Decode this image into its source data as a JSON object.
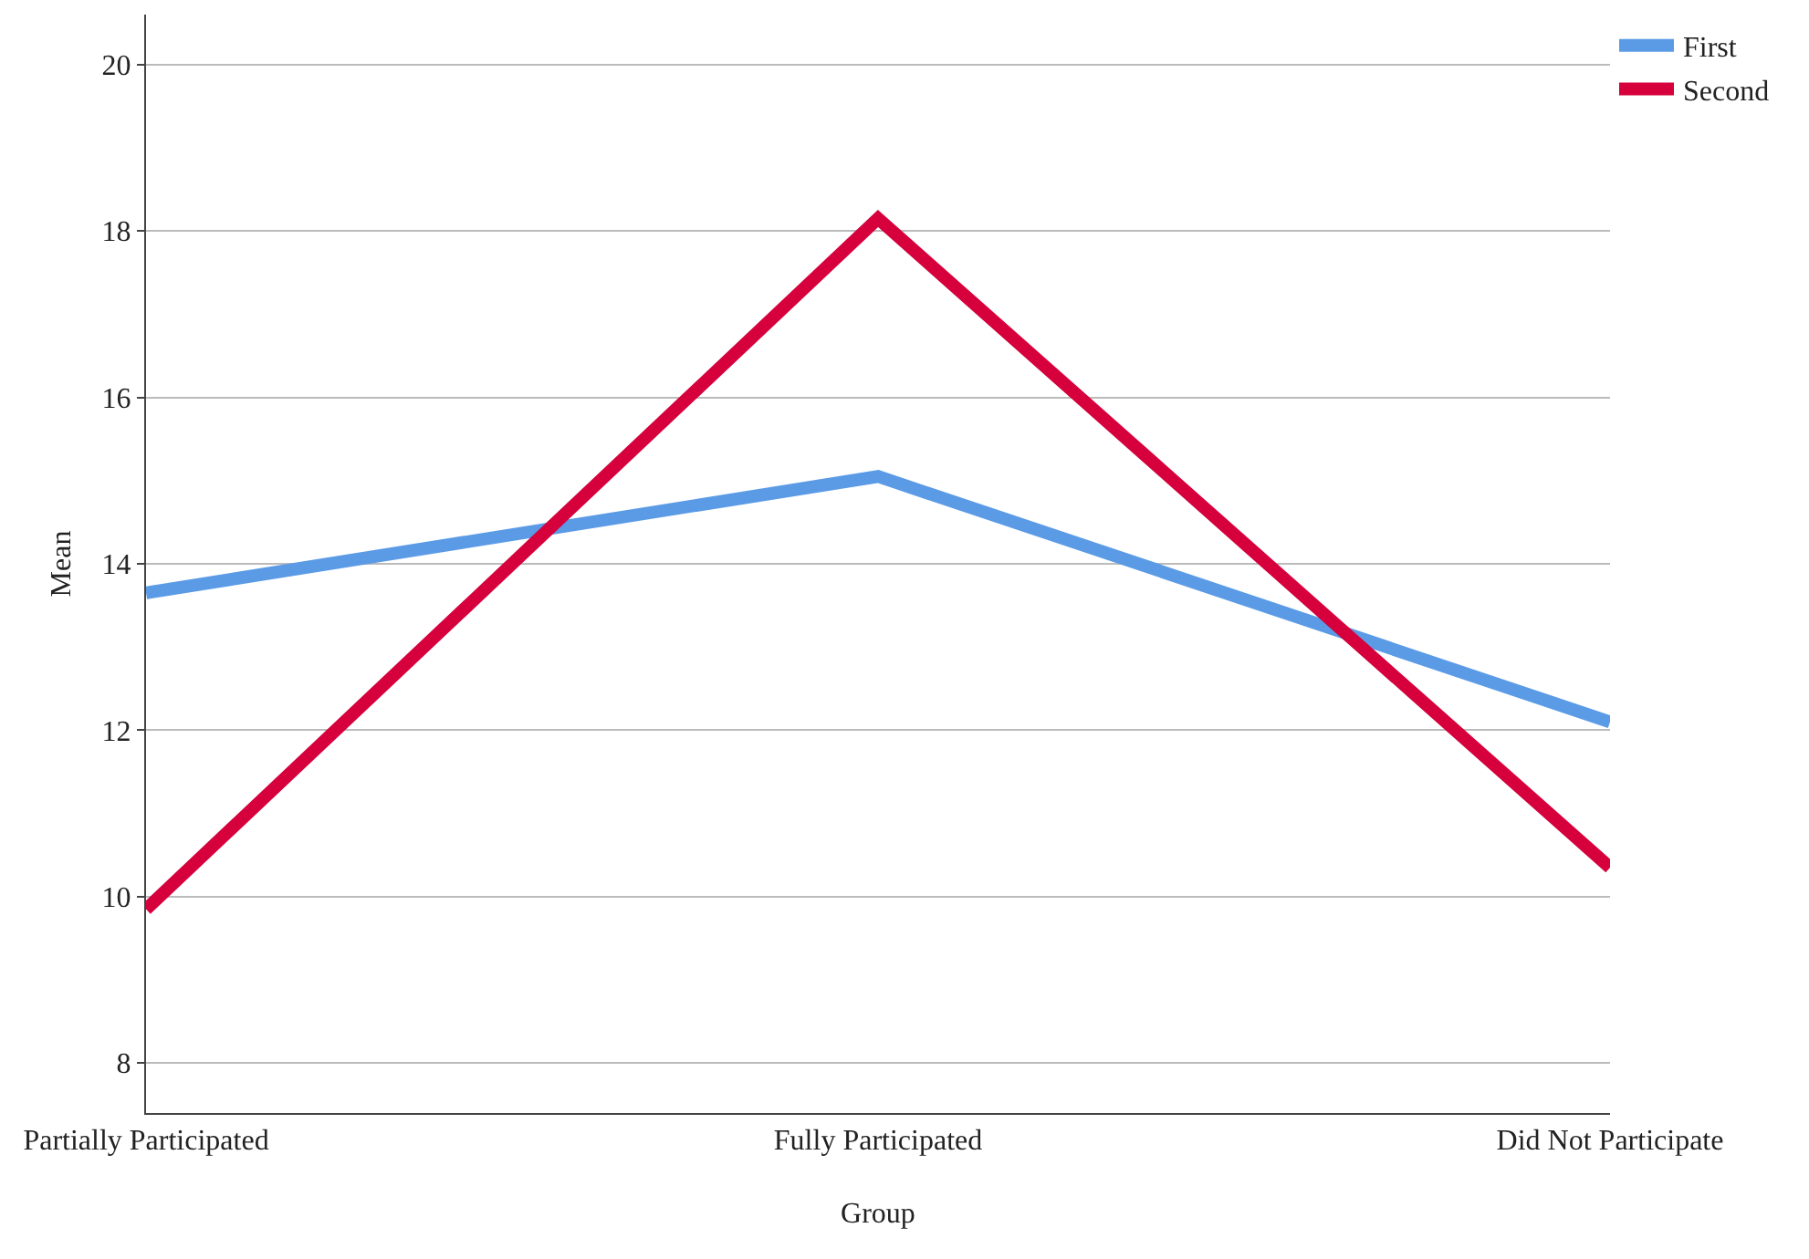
{
  "chart_data": {
    "type": "line",
    "xlabel": "Group",
    "ylabel": "Mean",
    "categories": [
      "Partially Participated",
      "Fully Participated",
      "Did Not Participate"
    ],
    "series": [
      {
        "name": "First",
        "color": "#5b9be6",
        "values": [
          13.65,
          15.05,
          12.1
        ]
      },
      {
        "name": "Second",
        "color": "#d5003c",
        "values": [
          9.85,
          18.15,
          10.35
        ]
      }
    ],
    "ylim": [
      7.4,
      20.6
    ],
    "yticks": [
      8,
      10,
      12,
      14,
      16,
      18,
      20
    ],
    "grid": "y",
    "legend": "top right",
    "marker": "none",
    "line_style": "solid"
  }
}
